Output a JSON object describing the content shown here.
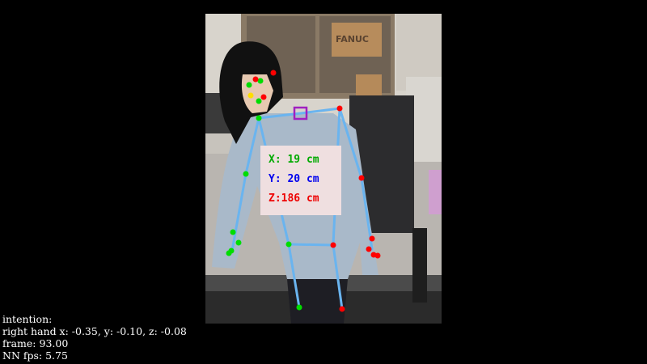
{
  "overlay": {
    "coordinate_box": {
      "x_text": "X: 19 cm",
      "y_text": "Y: 20 cm",
      "z_text": "Z:186 cm",
      "background": "#efdfe0",
      "x_color": "#00aa00",
      "y_color": "#0000ee",
      "z_color": "#ee0000"
    },
    "skeleton_color": "#6ab4ef",
    "keypoint_colors": {
      "left": "#00dd00",
      "right": "#ff0000",
      "nose": "#ffdd00"
    },
    "marker_color": "#a020c0"
  },
  "info": {
    "intention_label": "intention:",
    "right_hand_line": "right hand x: -0.35, y: -0.10, z: -0.08",
    "frame_line": "frame: 93.00",
    "fps_line": "NN fps: 5.75"
  },
  "scene_labels": {
    "box_brand": "FANUC"
  }
}
